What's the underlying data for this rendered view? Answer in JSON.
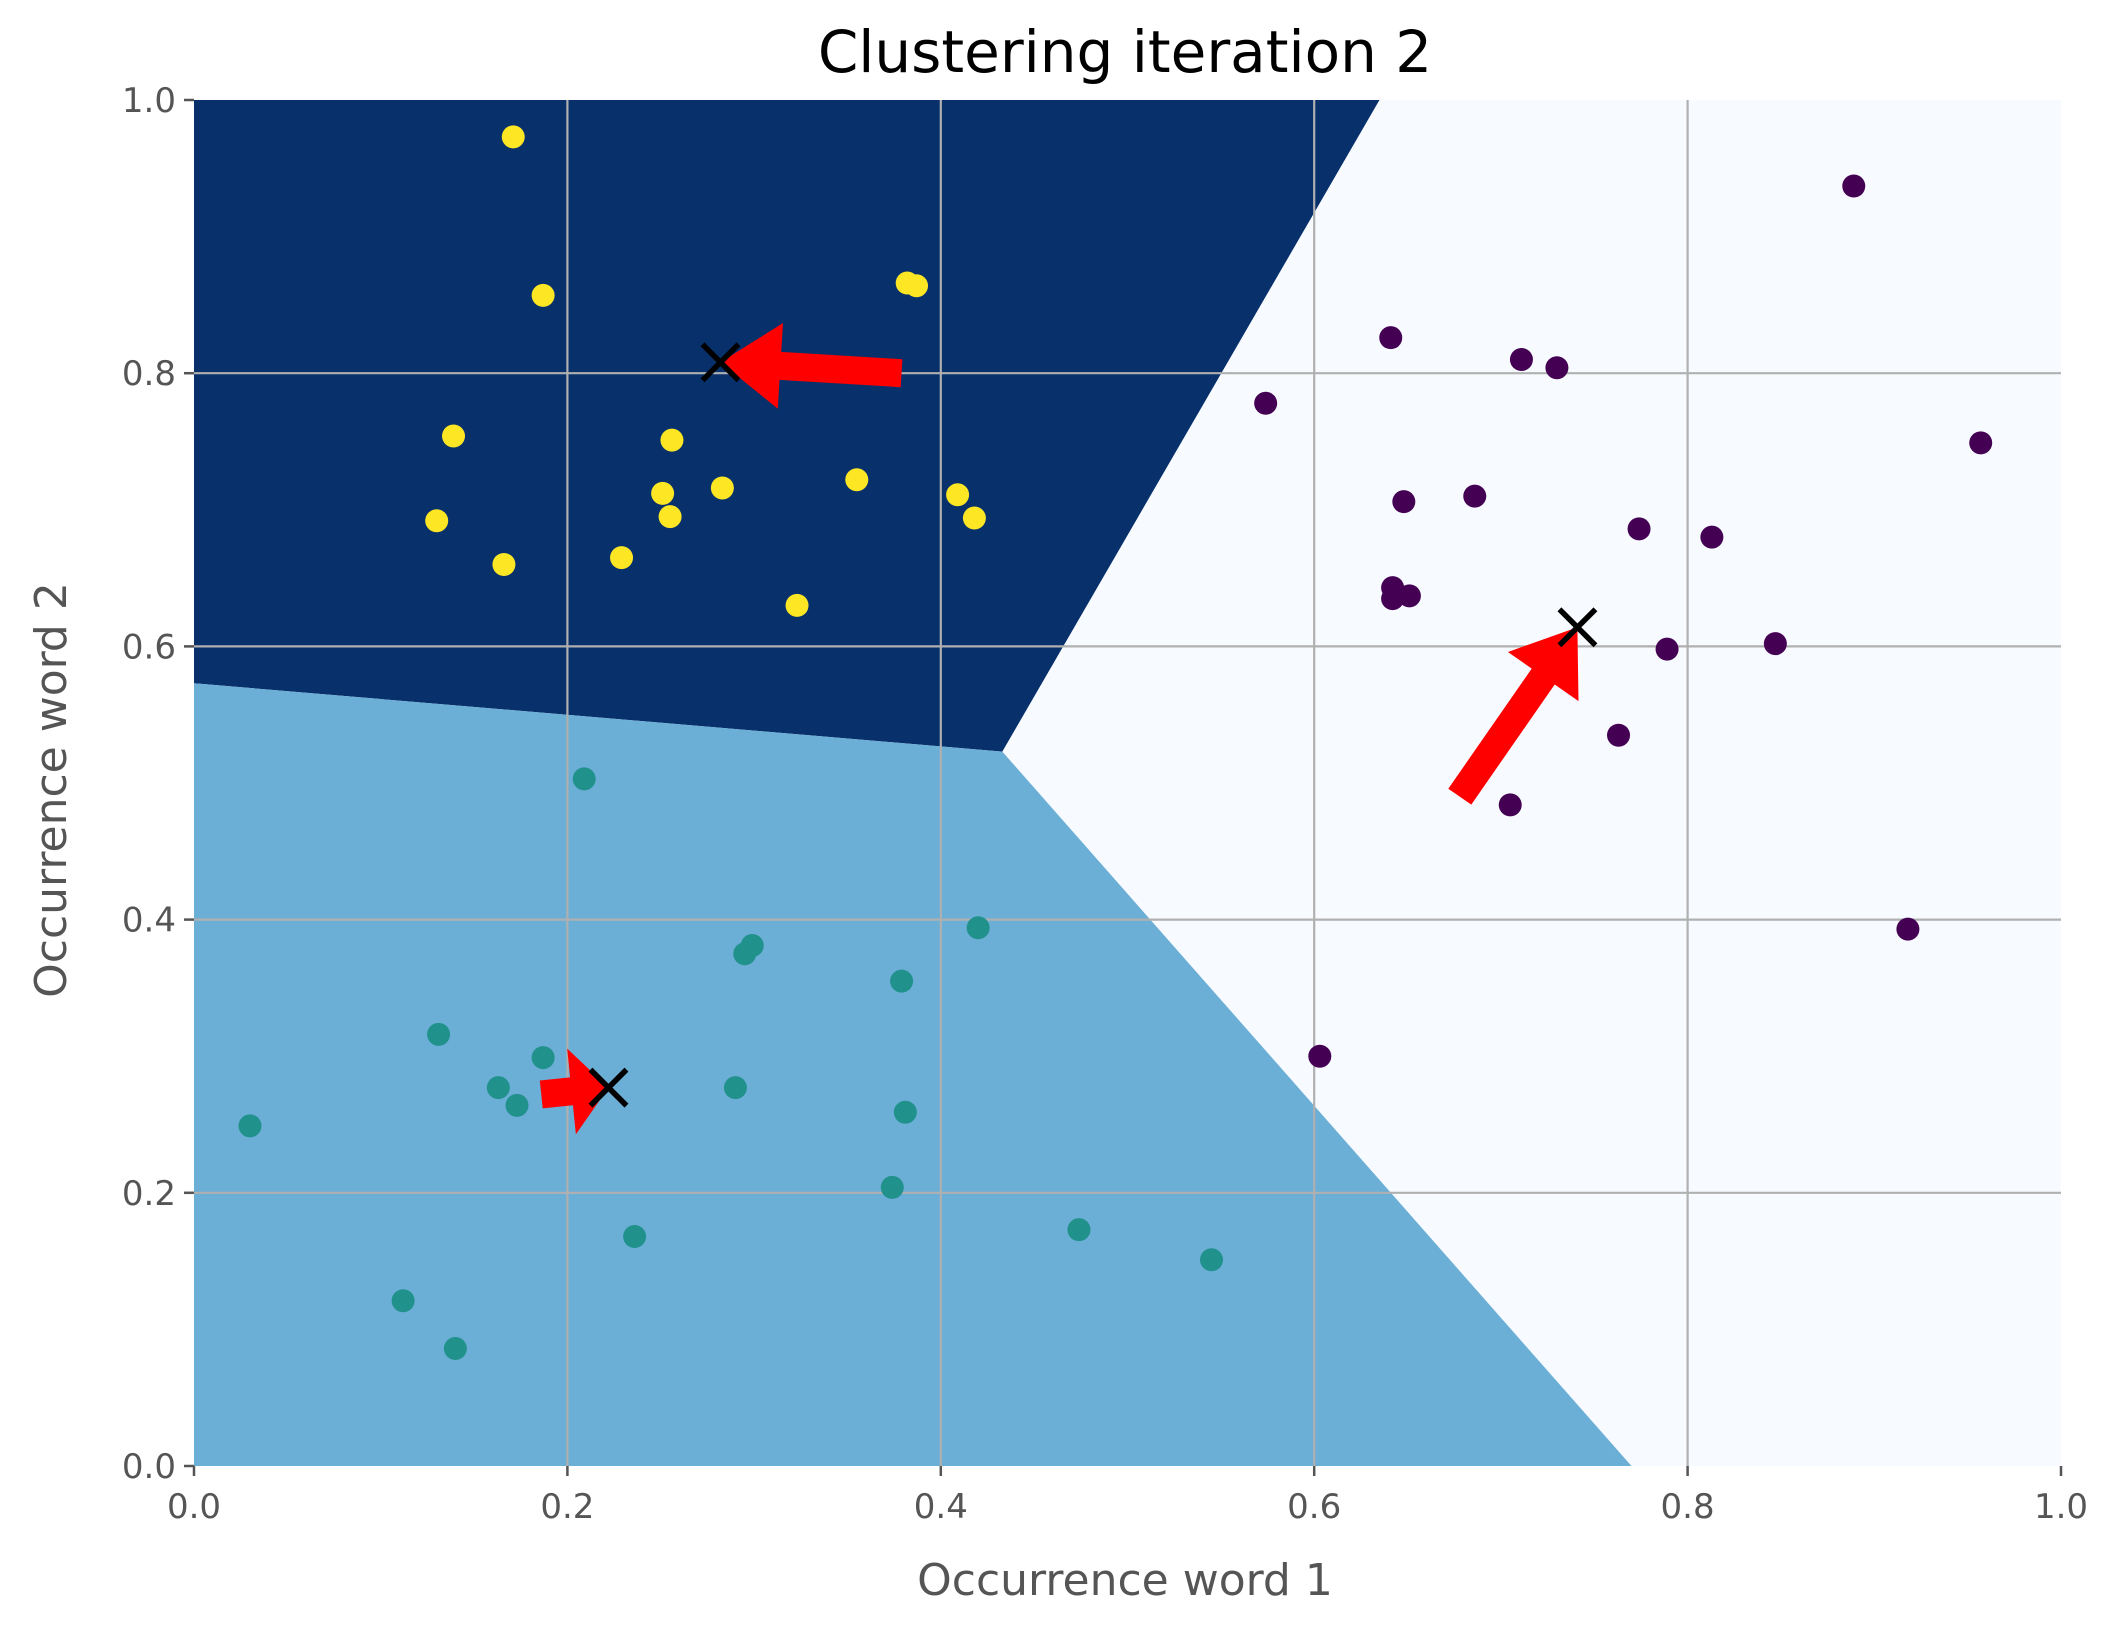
{
  "chart_data": {
    "type": "scatter",
    "title": "Clustering iteration 2",
    "xlabel": "Occurrence word 1",
    "ylabel": "Occurrence word 2",
    "xlim": [
      0.0,
      1.0
    ],
    "ylim": [
      0.0,
      1.0
    ],
    "xticks": [
      "0.0",
      "0.2",
      "0.4",
      "0.6",
      "0.8",
      "1.0"
    ],
    "yticks": [
      "0.0",
      "0.2",
      "0.4",
      "0.6",
      "0.8",
      "1.0"
    ],
    "grid": true,
    "regions": [
      {
        "color": "#08306b",
        "polygon": [
          [
            0.0,
            0.573
          ],
          [
            0.433,
            0.523
          ],
          [
            0.635,
            1.0
          ],
          [
            0.0,
            1.0
          ]
        ]
      },
      {
        "color": "#6baed6",
        "polygon": [
          [
            0.0,
            0.0
          ],
          [
            0.77,
            0.0
          ],
          [
            0.433,
            0.523
          ],
          [
            0.0,
            0.573
          ]
        ]
      },
      {
        "color": "#f7fbff",
        "polygon": [
          [
            0.77,
            0.0
          ],
          [
            1.0,
            0.0
          ],
          [
            1.0,
            1.0
          ],
          [
            0.635,
            1.0
          ],
          [
            0.433,
            0.523
          ]
        ]
      }
    ],
    "series": [
      {
        "color": "#fde725",
        "points": [
          [
            0.171,
            0.973
          ],
          [
            0.187,
            0.857
          ],
          [
            0.382,
            0.866
          ],
          [
            0.387,
            0.864
          ],
          [
            0.139,
            0.754
          ],
          [
            0.256,
            0.751
          ],
          [
            0.283,
            0.716
          ],
          [
            0.355,
            0.722
          ],
          [
            0.251,
            0.712
          ],
          [
            0.409,
            0.711
          ],
          [
            0.13,
            0.692
          ],
          [
            0.255,
            0.695
          ],
          [
            0.418,
            0.694
          ],
          [
            0.166,
            0.66
          ],
          [
            0.229,
            0.665
          ],
          [
            0.323,
            0.63
          ]
        ]
      },
      {
        "color": "#21918c",
        "points": [
          [
            0.209,
            0.503
          ],
          [
            0.299,
            0.381
          ],
          [
            0.295,
            0.375
          ],
          [
            0.42,
            0.394
          ],
          [
            0.379,
            0.355
          ],
          [
            0.131,
            0.316
          ],
          [
            0.187,
            0.299
          ],
          [
            0.163,
            0.277
          ],
          [
            0.173,
            0.264
          ],
          [
            0.29,
            0.277
          ],
          [
            0.381,
            0.259
          ],
          [
            0.03,
            0.249
          ],
          [
            0.374,
            0.204
          ],
          [
            0.236,
            0.168
          ],
          [
            0.474,
            0.173
          ],
          [
            0.545,
            0.151
          ],
          [
            0.112,
            0.121
          ],
          [
            0.14,
            0.086
          ]
        ]
      },
      {
        "color": "#440154",
        "points": [
          [
            0.889,
            0.937
          ],
          [
            0.641,
            0.826
          ],
          [
            0.711,
            0.81
          ],
          [
            0.73,
            0.804
          ],
          [
            0.574,
            0.778
          ],
          [
            0.957,
            0.749
          ],
          [
            0.686,
            0.71
          ],
          [
            0.648,
            0.706
          ],
          [
            0.774,
            0.686
          ],
          [
            0.813,
            0.68
          ],
          [
            0.642,
            0.643
          ],
          [
            0.651,
            0.637
          ],
          [
            0.642,
            0.635
          ],
          [
            0.847,
            0.602
          ],
          [
            0.789,
            0.598
          ],
          [
            0.763,
            0.535
          ],
          [
            0.705,
            0.484
          ],
          [
            0.918,
            0.393
          ],
          [
            0.603,
            0.3
          ]
        ]
      }
    ],
    "centroids": [
      [
        0.282,
        0.808
      ],
      [
        0.741,
        0.614
      ],
      [
        0.222,
        0.277
      ]
    ],
    "arrows": [
      {
        "from": [
          0.379,
          0.8
        ],
        "to": [
          0.282,
          0.808
        ],
        "color": "#ff0000"
      },
      {
        "from": [
          0.678,
          0.49
        ],
        "to": [
          0.741,
          0.614
        ],
        "color": "#ff0000"
      },
      {
        "from": [
          0.186,
          0.272
        ],
        "to": [
          0.222,
          0.277
        ],
        "color": "#ff0000"
      }
    ],
    "centroid_color": "#000000",
    "grid_color": "#b0b0b0"
  }
}
